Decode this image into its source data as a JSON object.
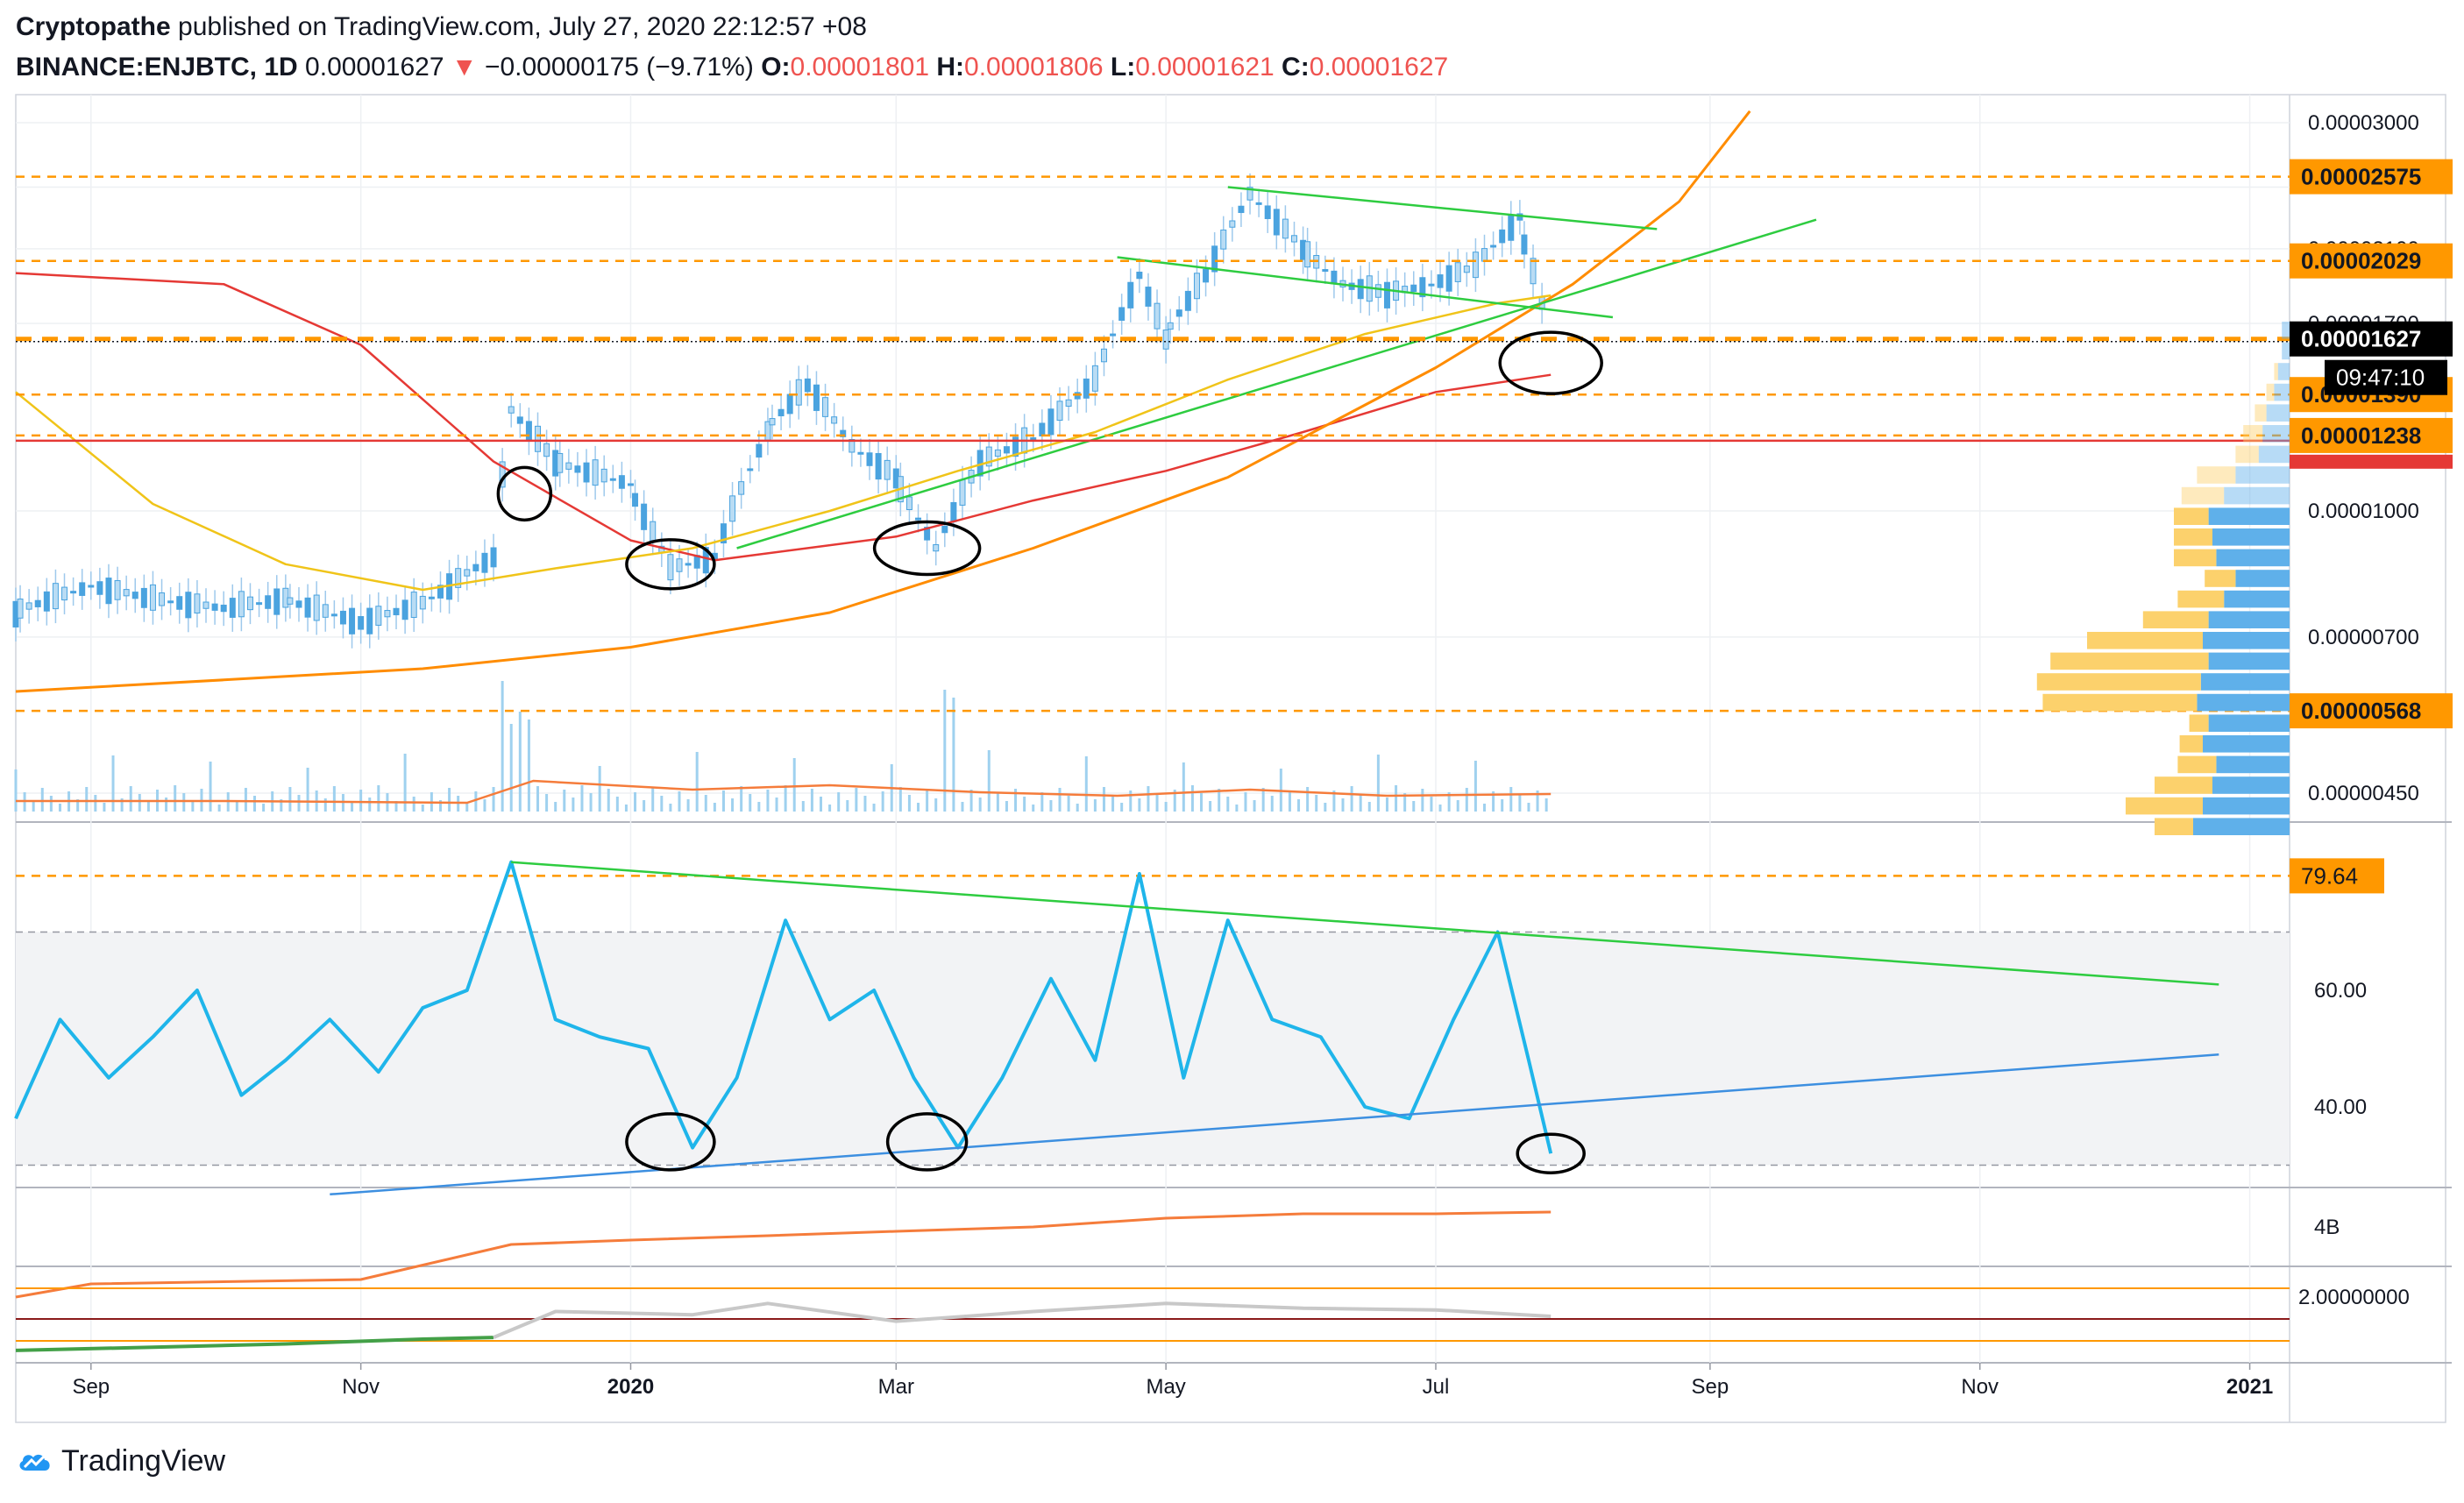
{
  "header": {
    "author": "Cryptopathe",
    "published": "published on TradingView.com, July 27, 2020 22:12:57 +08",
    "symbol": "BINANCE:ENJBTC, 1D",
    "last": "0.00001627",
    "arrow": "▼",
    "change": "−0.00000175 (−9.71%)",
    "o_label": "O:",
    "o_val": "0.00001801",
    "h_label": "H:",
    "h_val": "0.00001806",
    "l_label": "L:",
    "l_val": "0.00001621",
    "c_label": "C:",
    "c_val": "0.00001627"
  },
  "footer": {
    "brand": "TradingView"
  },
  "colors": {
    "price": "#2196f3",
    "ma_red": "#e53935",
    "ma_yellow": "#f0c419",
    "ma_orange": "#ff8c00",
    "trend_green": "#2ecc40",
    "rsi": "#1fb5ea",
    "rsi_trend": "#3d8fe0",
    "level": "#ff9800",
    "vol_profile_up": "#5fb0ea",
    "vol_profile_down": "#fcd16c",
    "obv": "#f57c3b"
  },
  "chart_data": [
    {
      "type": "line",
      "name": "price",
      "x": [
        "2019-08-15",
        "2019-09-01",
        "2019-09-15",
        "2019-10-01",
        "2019-10-15",
        "2019-11-01",
        "2019-11-15",
        "2019-12-01",
        "2019-12-05",
        "2019-12-15",
        "2020-01-01",
        "2020-01-10",
        "2020-01-20",
        "2020-02-01",
        "2020-02-10",
        "2020-02-20",
        "2020-03-01",
        "2020-03-10",
        "2020-03-20",
        "2020-04-01",
        "2020-04-15",
        "2020-04-25",
        "2020-05-01",
        "2020-05-10",
        "2020-05-20",
        "2020-06-01",
        "2020-06-10",
        "2020-06-20",
        "2020-06-30",
        "2020-07-10",
        "2020-07-20",
        "2020-07-27"
      ],
      "values": [
        7.5e-06,
        8.1e-06,
        7.8e-06,
        7.6e-06,
        7.8e-06,
        7.3e-06,
        7.7e-06,
        8.8e-06,
        1.33e-05,
        1.15e-05,
        1.08e-05,
        8.5e-06,
        8.8e-06,
        1.25e-05,
        1.43e-05,
        1.2e-05,
        1.1e-05,
        9e-06,
        1.15e-05,
        1.23e-05,
        1.45e-05,
        1.95e-05,
        1.62e-05,
        1.95e-05,
        2.45e-05,
        2.1e-05,
        1.9e-05,
        1.85e-05,
        1.9e-05,
        2e-05,
        2.3e-05,
        1.63e-05
      ],
      "ma_red_x": [
        "2019-08-15",
        "2019-10-01",
        "2019-11-01",
        "2019-12-01",
        "2020-01-01",
        "2020-01-20",
        "2020-03-01",
        "2020-04-01",
        "2020-05-01",
        "2020-06-01",
        "2020-07-01",
        "2020-07-27"
      ],
      "ma_red": [
        1.96e-05,
        1.9e-05,
        1.6e-05,
        1.15e-05,
        9.2e-06,
        8.7e-06,
        9.3e-06,
        1.03e-05,
        1.12e-05,
        1.25e-05,
        1.4e-05,
        1.47e-05
      ],
      "ma_yellow_x": [
        "2019-08-15",
        "2019-09-15",
        "2019-10-15",
        "2019-11-15",
        "2019-12-15",
        "2020-01-15",
        "2020-02-15",
        "2020-03-15",
        "2020-04-15",
        "2020-05-15",
        "2020-06-15",
        "2020-07-15",
        "2020-07-27"
      ],
      "ma_yellow": [
        1.4e-05,
        1.02e-05,
        8.6e-06,
        8e-06,
        8.5e-06,
        9e-06,
        1e-05,
        1.12e-05,
        1.25e-05,
        1.45e-05,
        1.65e-05,
        1.8e-05,
        1.84e-05
      ],
      "ma_orange_x": [
        "2019-08-15",
        "2019-10-01",
        "2019-11-15",
        "2020-01-01",
        "2020-02-15",
        "2020-04-01",
        "2020-05-15",
        "2020-07-01",
        "2020-08-01",
        "2020-08-25",
        "2020-09-10"
      ],
      "ma_orange": [
        6e-06,
        6.2e-06,
        6.4e-06,
        6.8e-06,
        7.5e-06,
        9e-06,
        1.1e-05,
        1.5e-05,
        1.9e-05,
        2.4e-05,
        3.1e-05
      ],
      "levels": [
        2.575e-05,
        2.029e-05,
        1.627e-05,
        1.39e-05,
        1.238e-05,
        5.68e-06
      ],
      "hline_red": 1.22e-05,
      "level_labels": [
        "0.00002575",
        "0.00002029",
        "0.00001627",
        "0.00001390",
        "0.00001238",
        "0.00000568"
      ],
      "countdown": "09:47:10",
      "yticks": [
        "0.00003000",
        "0.00002500",
        "0.00002100",
        "0.00001700",
        "0.00001000",
        "0.00000700",
        "0.00000450"
      ],
      "ytick_values": [
        3e-05,
        2.5e-05,
        2.1e-05,
        1.7e-05,
        1e-05,
        7e-06,
        4.5e-06
      ],
      "trend_lines": [
        {
          "x": [
            "2020-05-15",
            "2020-08-20"
          ],
          "y": [
            2.5e-05,
            2.22e-05
          ]
        },
        {
          "x": [
            "2020-04-20",
            "2020-08-10"
          ],
          "y": [
            2.05e-05,
            1.73e-05
          ]
        },
        {
          "x": [
            "2020-01-25",
            "2020-09-25"
          ],
          "y": [
            9e-06,
            2.28e-05
          ]
        }
      ],
      "volume_profile_up": [
        0.04,
        0.04,
        0.06,
        0.08,
        0.12,
        0.14,
        0.16,
        0.28,
        0.34,
        0.42,
        0.4,
        0.38,
        0.28,
        0.34,
        0.42,
        0.45,
        0.42,
        0.46,
        0.48,
        0.42,
        0.45,
        0.38,
        0.4,
        0.45,
        0.5
      ],
      "volume_profile_down": [
        0.0,
        0.0,
        0.02,
        0.04,
        0.06,
        0.1,
        0.12,
        0.2,
        0.22,
        0.18,
        0.2,
        0.22,
        0.16,
        0.24,
        0.34,
        0.6,
        0.82,
        0.85,
        0.8,
        0.1,
        0.12,
        0.2,
        0.3,
        0.4,
        0.2
      ],
      "volume_ma_label": ""
    },
    {
      "type": "line",
      "name": "rsi",
      "x": [
        "2019-08-15",
        "2019-08-25",
        "2019-09-05",
        "2019-09-15",
        "2019-09-25",
        "2019-10-05",
        "2019-10-15",
        "2019-10-25",
        "2019-11-05",
        "2019-11-15",
        "2019-11-25",
        "2019-12-05",
        "2019-12-15",
        "2019-12-25",
        "2020-01-05",
        "2020-01-15",
        "2020-01-25",
        "2020-02-05",
        "2020-02-15",
        "2020-02-25",
        "2020-03-05",
        "2020-03-15",
        "2020-03-25",
        "2020-04-05",
        "2020-04-15",
        "2020-04-25",
        "2020-05-05",
        "2020-05-15",
        "2020-05-25",
        "2020-06-05",
        "2020-06-15",
        "2020-06-25",
        "2020-07-05",
        "2020-07-15",
        "2020-07-22",
        "2020-07-27"
      ],
      "values": [
        38,
        55,
        45,
        52,
        60,
        42,
        48,
        55,
        46,
        57,
        60,
        82,
        55,
        52,
        50,
        33,
        45,
        72,
        55,
        60,
        45,
        33,
        45,
        62,
        48,
        80,
        45,
        72,
        55,
        52,
        40,
        38,
        55,
        70,
        48,
        32
      ],
      "levels": [
        79.64
      ],
      "level_labels": [
        "79.64"
      ],
      "band": [
        30,
        70
      ],
      "yticks": [
        "60.00",
        "40.00"
      ],
      "ytick_values": [
        60,
        40
      ],
      "trend_lines": [
        {
          "x": [
            "2019-12-05",
            "2020-12-25"
          ],
          "y": [
            82,
            61
          ]
        },
        {
          "x": [
            "2019-10-25",
            "2020-12-25"
          ],
          "y": [
            25,
            49
          ]
        }
      ]
    },
    {
      "type": "area",
      "name": "obv",
      "x": [
        "2019-08-15",
        "2019-09-01",
        "2019-11-01",
        "2019-12-05",
        "2020-01-01",
        "2020-02-01",
        "2020-03-01",
        "2020-04-01",
        "2020-05-01",
        "2020-06-01",
        "2020-07-01",
        "2020-07-27"
      ],
      "values": [
        3.2,
        3.35,
        3.4,
        3.8,
        3.85,
        3.9,
        3.95,
        4.0,
        4.1,
        4.15,
        4.15,
        4.17
      ],
      "yticks": [
        "4B"
      ],
      "ytick_values": [
        4.0
      ]
    },
    {
      "type": "line",
      "name": "ratio",
      "x": [
        "2019-08-15",
        "2019-09-15",
        "2019-10-15",
        "2019-11-15",
        "2019-12-01",
        "2019-12-15",
        "2020-01-15",
        "2020-02-01",
        "2020-03-01",
        "2020-04-01",
        "2020-05-01",
        "2020-06-01",
        "2020-07-01",
        "2020-07-27"
      ],
      "values": [
        0.3,
        0.4,
        0.5,
        0.65,
        0.7,
        1.5,
        1.4,
        1.75,
        1.2,
        1.5,
        1.75,
        1.6,
        1.55,
        1.35
      ],
      "yticks": [
        "2.00000000"
      ],
      "ytick_values": [
        2.0
      ]
    }
  ],
  "xaxis": {
    "ticks": [
      "Sep",
      "Nov",
      "2020",
      "Mar",
      "May",
      "Jul",
      "Sep",
      "Nov",
      "2021"
    ],
    "tick_dates": [
      "2019-09-01",
      "2019-11-01",
      "2020-01-01",
      "2020-03-01",
      "2020-05-01",
      "2020-07-01",
      "2020-09-01",
      "2020-11-01",
      "2021-01-01"
    ],
    "bold": [
      "2020",
      "2021"
    ],
    "start": "2019-08-15",
    "end": "2021-01-10"
  }
}
